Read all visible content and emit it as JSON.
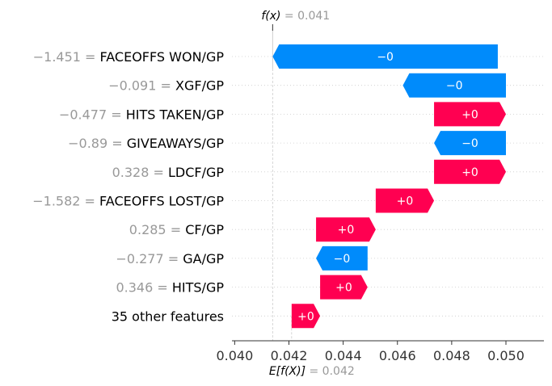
{
  "chart_data": {
    "type": "waterfall",
    "fx": {
      "symbol": "f(x)",
      "value_text": " = 0.041",
      "value": 0.0414
    },
    "base": {
      "symbol": "E[f(X)]",
      "value_text": " = 0.042",
      "value": 0.0421
    },
    "xlim": [
      0.0399,
      0.0514
    ],
    "xticks": [
      0.04,
      0.042,
      0.044,
      0.046,
      0.048,
      0.05
    ],
    "xtick_labels": [
      "0.040",
      "0.042",
      "0.044",
      "0.046",
      "0.048",
      "0.050"
    ],
    "colors": {
      "positive": "#ff0051",
      "negative": "#008bfb",
      "axis": "#333333",
      "grid": "#cccccc",
      "value_text": "#999999"
    },
    "features": [
      {
        "value": "−1.451 = ",
        "name": "FACEOFFS WON/GP",
        "start": 0.0497,
        "end": 0.0414,
        "label": "−0",
        "sign": "negative"
      },
      {
        "value": "−0.091 = ",
        "name": "XGF/GP",
        "start": 0.05,
        "end": 0.0462,
        "label": "−0",
        "sign": "negative"
      },
      {
        "value": "−0.477 = ",
        "name": "HITS TAKEN/GP",
        "start": 0.04735,
        "end": 0.05,
        "label": "+0",
        "sign": "positive"
      },
      {
        "value": "−0.89 = ",
        "name": "GIVEAWAYS/GP",
        "start": 0.05,
        "end": 0.04735,
        "label": "−0",
        "sign": "negative"
      },
      {
        "value": "0.328 = ",
        "name": "LDCF/GP",
        "start": 0.04735,
        "end": 0.05,
        "label": "+0",
        "sign": "positive"
      },
      {
        "value": "−1.582 = ",
        "name": "FACEOFFS LOST/GP",
        "start": 0.0452,
        "end": 0.04735,
        "label": "+0",
        "sign": "positive"
      },
      {
        "value": "0.285 = ",
        "name": "CF/GP",
        "start": 0.043,
        "end": 0.0452,
        "label": "+0",
        "sign": "positive"
      },
      {
        "value": "−0.277 = ",
        "name": "GA/GP",
        "start": 0.0449,
        "end": 0.043,
        "label": "−0",
        "sign": "negative"
      },
      {
        "value": "0.346 = ",
        "name": "HITS/GP",
        "start": 0.04315,
        "end": 0.0449,
        "label": "+0",
        "sign": "positive"
      },
      {
        "value": "",
        "name": "35 other features",
        "start": 0.0421,
        "end": 0.04315,
        "label": "+0",
        "sign": "positive"
      }
    ]
  }
}
